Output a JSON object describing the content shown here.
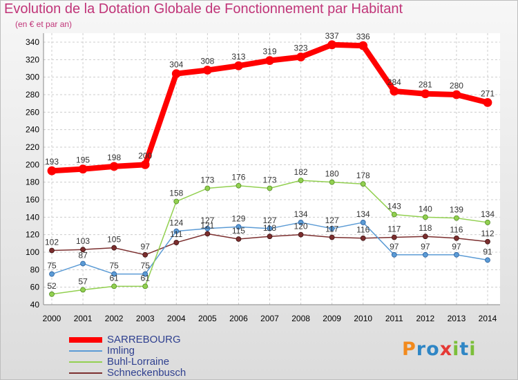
{
  "title": "Evolution de la Dotation Globale de Fonctionnement par Habitant",
  "subtitle": "(en € et par an)",
  "logo": "Proxiti",
  "chart_data": {
    "type": "line",
    "x": [
      2000,
      2001,
      2002,
      2003,
      2004,
      2005,
      2006,
      2007,
      2008,
      2009,
      2010,
      2011,
      2012,
      2013,
      2014
    ],
    "ylim": [
      40,
      340
    ],
    "yticks": [
      40,
      60,
      80,
      100,
      120,
      140,
      160,
      180,
      200,
      220,
      240,
      260,
      280,
      300,
      320,
      340
    ],
    "grid": true,
    "legend_position": "bottom-left",
    "series": [
      {
        "name": "SARREBOURG",
        "color": "#ff0000",
        "values": [
          193,
          195,
          198,
          200,
          304,
          308,
          313,
          319,
          323,
          337,
          336,
          284,
          281,
          280,
          271
        ]
      },
      {
        "name": "Imling",
        "color": "#5b9bd5",
        "values": [
          75,
          87,
          75,
          75,
          124,
          127,
          129,
          127,
          134,
          127,
          134,
          97,
          97,
          97,
          91
        ]
      },
      {
        "name": "Buhl-Lorraine",
        "color": "#92d050",
        "values": [
          52,
          57,
          61,
          61,
          158,
          173,
          176,
          173,
          182,
          180,
          178,
          143,
          140,
          139,
          134
        ]
      },
      {
        "name": "Schneckenbusch",
        "color": "#7b2e2e",
        "values": [
          102,
          103,
          105,
          97,
          111,
          121,
          115,
          118,
          120,
          117,
          116,
          117,
          118,
          116,
          112
        ]
      }
    ],
    "labels": [
      [
        "193",
        "195",
        "198",
        "200",
        "304",
        "308",
        "313",
        "319",
        "323",
        "337",
        "336",
        "284",
        "281",
        "280",
        "271"
      ],
      [
        "75",
        "87",
        "75",
        "75",
        "124",
        "127",
        "129",
        "127",
        "134",
        "127",
        "134",
        "97",
        "97",
        "97",
        "91"
      ],
      [
        "52",
        "57",
        "61",
        "61",
        "158",
        "173",
        "176",
        "173",
        "182",
        "180",
        "178",
        "143",
        "140",
        "139",
        "134"
      ],
      [
        "102",
        "103",
        "105",
        "97",
        "111",
        "121",
        "115",
        "118",
        "120",
        "117",
        "116",
        "117",
        "118",
        "116",
        "112"
      ]
    ]
  }
}
